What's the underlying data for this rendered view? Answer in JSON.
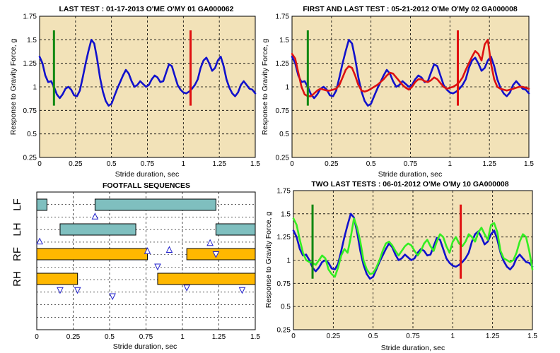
{
  "chart_data": [
    {
      "type": "line",
      "title": "LAST TEST : 01-17-2013 O'ME O'MY 01 GA000062",
      "xlabel": "Stride duration, sec",
      "ylabel": "Response to Gravity Force, g",
      "xlim": [
        0,
        1.5
      ],
      "ylim": [
        0.25,
        1.75
      ],
      "xticks": [
        "0",
        "0.25",
        "0.5",
        "0.75",
        "1",
        "1.25",
        "1.5"
      ],
      "yticks": [
        "0.25",
        "0.5",
        "0.75",
        "1",
        "1.25",
        "1.5",
        "1.75"
      ],
      "grid": true,
      "markers": [
        {
          "x": 0.1,
          "y0": 0.8,
          "y1": 1.6,
          "color": "#118811"
        },
        {
          "x": 1.05,
          "y0": 0.8,
          "y1": 1.6,
          "color": "#e01010"
        }
      ],
      "series": [
        {
          "color": "#1111cc",
          "x": [
            0,
            0.02,
            0.04,
            0.06,
            0.08,
            0.1,
            0.12,
            0.14,
            0.16,
            0.18,
            0.2,
            0.22,
            0.24,
            0.26,
            0.28,
            0.3,
            0.32,
            0.34,
            0.36,
            0.38,
            0.4,
            0.42,
            0.44,
            0.46,
            0.48,
            0.5,
            0.52,
            0.54,
            0.56,
            0.58,
            0.6,
            0.62,
            0.64,
            0.66,
            0.68,
            0.7,
            0.72,
            0.74,
            0.76,
            0.78,
            0.8,
            0.82,
            0.84,
            0.86,
            0.88,
            0.9,
            0.92,
            0.94,
            0.96,
            0.98,
            1,
            1.02,
            1.04,
            1.06,
            1.08,
            1.1,
            1.12,
            1.14,
            1.16,
            1.18,
            1.2,
            1.22,
            1.24,
            1.26,
            1.28,
            1.3,
            1.32,
            1.34,
            1.36,
            1.38,
            1.4,
            1.42,
            1.44,
            1.46,
            1.48,
            1.5
          ],
          "y": [
            1.32,
            1.25,
            1.12,
            1.05,
            1.06,
            1.0,
            0.92,
            0.88,
            0.92,
            0.98,
            1.0,
            0.97,
            0.91,
            0.9,
            0.96,
            1.1,
            1.25,
            1.38,
            1.5,
            1.46,
            1.3,
            1.1,
            0.95,
            0.85,
            0.8,
            0.82,
            0.9,
            0.98,
            1.05,
            1.12,
            1.18,
            1.14,
            1.06,
            1.0,
            1.02,
            1.06,
            1.03,
            1.0,
            1.02,
            1.08,
            1.12,
            1.1,
            1.05,
            1.06,
            1.15,
            1.24,
            1.22,
            1.12,
            1.02,
            0.97,
            0.94,
            0.93,
            0.95,
            0.98,
            1.02,
            1.08,
            1.2,
            1.28,
            1.31,
            1.25,
            1.17,
            1.2,
            1.28,
            1.32,
            1.22,
            1.08,
            0.99,
            0.93,
            0.9,
            0.94,
            1.02,
            1.06,
            1.02,
            0.98,
            0.97,
            0.93
          ]
        }
      ]
    },
    {
      "type": "line",
      "title": "FIRST AND LAST TEST : 05-21-2012 O'Me O'My 02 GA000008",
      "xlabel": "Stride duration, sec",
      "ylabel": "Response to Gravity Force, g",
      "xlim": [
        0,
        1.5
      ],
      "ylim": [
        0.25,
        1.75
      ],
      "xticks": [
        "0",
        "0.25",
        "0.5",
        "0.75",
        "1",
        "1.25",
        "1.5"
      ],
      "yticks": [
        "0.25",
        "0.5",
        "0.75",
        "1",
        "1.25",
        "1.5",
        "1.75"
      ],
      "grid": true,
      "markers": [
        {
          "x": 0.1,
          "y0": 0.8,
          "y1": 1.6,
          "color": "#118811"
        },
        {
          "x": 1.05,
          "y0": 0.8,
          "y1": 1.6,
          "color": "#e01010"
        }
      ],
      "series": [
        {
          "color": "#1111cc",
          "x": [
            0,
            0.02,
            0.04,
            0.06,
            0.08,
            0.1,
            0.12,
            0.14,
            0.16,
            0.18,
            0.2,
            0.22,
            0.24,
            0.26,
            0.28,
            0.3,
            0.32,
            0.34,
            0.36,
            0.38,
            0.4,
            0.42,
            0.44,
            0.46,
            0.48,
            0.5,
            0.52,
            0.54,
            0.56,
            0.58,
            0.6,
            0.62,
            0.64,
            0.66,
            0.68,
            0.7,
            0.72,
            0.74,
            0.76,
            0.78,
            0.8,
            0.82,
            0.84,
            0.86,
            0.88,
            0.9,
            0.92,
            0.94,
            0.96,
            0.98,
            1,
            1.02,
            1.04,
            1.06,
            1.08,
            1.1,
            1.12,
            1.14,
            1.16,
            1.18,
            1.2,
            1.22,
            1.24,
            1.26,
            1.28,
            1.3,
            1.32,
            1.34,
            1.36,
            1.38,
            1.4,
            1.42,
            1.44,
            1.46,
            1.48,
            1.5
          ],
          "y": [
            1.32,
            1.25,
            1.12,
            1.05,
            1.06,
            1.0,
            0.92,
            0.88,
            0.92,
            0.98,
            1.0,
            0.97,
            0.91,
            0.9,
            0.96,
            1.1,
            1.25,
            1.38,
            1.5,
            1.46,
            1.3,
            1.1,
            0.95,
            0.85,
            0.8,
            0.82,
            0.9,
            0.98,
            1.05,
            1.12,
            1.18,
            1.14,
            1.06,
            1.0,
            1.02,
            1.06,
            1.03,
            1.0,
            1.02,
            1.08,
            1.12,
            1.1,
            1.05,
            1.06,
            1.15,
            1.24,
            1.22,
            1.12,
            1.02,
            0.97,
            0.94,
            0.93,
            0.95,
            0.98,
            1.02,
            1.08,
            1.2,
            1.28,
            1.31,
            1.25,
            1.17,
            1.2,
            1.28,
            1.32,
            1.22,
            1.08,
            0.99,
            0.93,
            0.9,
            0.94,
            1.02,
            1.06,
            1.02,
            0.98,
            0.97,
            0.93
          ]
        },
        {
          "color": "#dd1111",
          "x": [
            0,
            0.02,
            0.04,
            0.06,
            0.08,
            0.1,
            0.12,
            0.14,
            0.16,
            0.18,
            0.2,
            0.22,
            0.24,
            0.26,
            0.28,
            0.3,
            0.32,
            0.34,
            0.36,
            0.38,
            0.4,
            0.42,
            0.44,
            0.46,
            0.48,
            0.5,
            0.52,
            0.54,
            0.56,
            0.58,
            0.6,
            0.62,
            0.64,
            0.66,
            0.68,
            0.7,
            0.72,
            0.74,
            0.76,
            0.78,
            0.8,
            0.82,
            0.84,
            0.86,
            0.88,
            0.9,
            0.92,
            0.94,
            0.96,
            0.98,
            1,
            1.02,
            1.04,
            1.06,
            1.08,
            1.1,
            1.12,
            1.14,
            1.16,
            1.18,
            1.2,
            1.22,
            1.24,
            1.26,
            1.28,
            1.3,
            1.32,
            1.34,
            1.36,
            1.38,
            1.4,
            1.42,
            1.44,
            1.46,
            1.48,
            1.5
          ],
          "y": [
            1.35,
            1.3,
            1.15,
            1.0,
            0.92,
            0.9,
            0.9,
            0.93,
            0.96,
            0.98,
            0.97,
            0.96,
            0.96,
            0.97,
            0.98,
            1.02,
            1.1,
            1.18,
            1.22,
            1.2,
            1.12,
            1.02,
            0.96,
            0.95,
            0.96,
            0.98,
            1.0,
            1.02,
            1.05,
            1.08,
            1.12,
            1.15,
            1.14,
            1.1,
            1.06,
            1.02,
            0.99,
            0.97,
            1.0,
            1.05,
            1.08,
            1.08,
            1.06,
            1.05,
            1.07,
            1.1,
            1.08,
            1.04,
            1.0,
            0.98,
            0.99,
            1.0,
            1.02,
            1.05,
            1.1,
            1.18,
            1.25,
            1.32,
            1.38,
            1.35,
            1.28,
            1.45,
            1.5,
            1.25,
            1.08,
            1.0,
            0.98,
            0.97,
            0.96,
            0.97,
            0.98,
            0.99,
            1.0,
            1.0,
            0.99,
            0.98
          ]
        }
      ]
    },
    {
      "type": "footfall",
      "title": "FOOTFALL SEQUENCES",
      "xlabel": "Stride duration, sec",
      "xlim": [
        0,
        1.5
      ],
      "xticks": [
        "0",
        "0.25",
        "0.5",
        "0.75",
        "1",
        "1.25",
        "1.5"
      ],
      "grid": true,
      "lanes": [
        "LF",
        "LH",
        "RF",
        "RH"
      ],
      "fore_color": "#7fbfbf",
      "hind_color": "#ffb800",
      "bars": [
        {
          "lane": 0,
          "x0": 0.0,
          "x1": 0.07,
          "kind": "fore"
        },
        {
          "lane": 0,
          "x0": 0.4,
          "x1": 1.23,
          "kind": "fore"
        },
        {
          "lane": 1,
          "x0": 0.16,
          "x1": 0.68,
          "kind": "fore"
        },
        {
          "lane": 1,
          "x0": 1.23,
          "x1": 1.5,
          "kind": "fore"
        },
        {
          "lane": 2,
          "x0": 0.0,
          "x1": 0.76,
          "kind": "hind"
        },
        {
          "lane": 2,
          "x0": 1.03,
          "x1": 1.5,
          "kind": "hind"
        },
        {
          "lane": 3,
          "x0": 0.0,
          "x1": 0.28,
          "kind": "hind"
        },
        {
          "lane": 3,
          "x0": 0.83,
          "x1": 1.5,
          "kind": "hind"
        }
      ],
      "markers": [
        {
          "x": 0.4,
          "pos": 0.55,
          "dir": "up"
        },
        {
          "x": 0.02,
          "pos": 1.56,
          "dir": "up"
        },
        {
          "x": 1.19,
          "pos": 1.62,
          "dir": "up"
        },
        {
          "x": 0.76,
          "pos": 1.95,
          "dir": "up"
        },
        {
          "x": 0.91,
          "pos": 1.9,
          "dir": "up"
        },
        {
          "x": 1.23,
          "pos": 2.1,
          "dir": "down"
        },
        {
          "x": 0.83,
          "pos": 2.6,
          "dir": "down"
        },
        {
          "x": 0.16,
          "pos": 3.55,
          "dir": "down"
        },
        {
          "x": 0.28,
          "pos": 3.55,
          "dir": "down"
        },
        {
          "x": 1.03,
          "pos": 3.45,
          "dir": "down"
        },
        {
          "x": 1.41,
          "pos": 3.55,
          "dir": "down"
        },
        {
          "x": 0.52,
          "pos": 3.8,
          "dir": "down"
        }
      ]
    },
    {
      "type": "line",
      "title": "TWO LAST TESTS : 06-01-2012 O'Me O'My 10 GA000008",
      "xlabel": "Stride duration, sec",
      "ylabel": "Response to Gravity Force, g",
      "xlim": [
        0,
        1.5
      ],
      "ylim": [
        0.25,
        1.75
      ],
      "xticks": [
        "0",
        "0.25",
        "0.5",
        "0.75",
        "1",
        "1.25",
        "1.5"
      ],
      "yticks": [
        "0.25",
        "0.5",
        "0.75",
        "1",
        "1.25",
        "1.5",
        "1.75"
      ],
      "grid": true,
      "markers": [
        {
          "x": 0.12,
          "y0": 0.8,
          "y1": 1.6,
          "color": "#118811"
        },
        {
          "x": 1.05,
          "y0": 0.8,
          "y1": 1.6,
          "color": "#e01010"
        }
      ],
      "series": [
        {
          "color": "#1111cc",
          "x": [
            0,
            0.02,
            0.04,
            0.06,
            0.08,
            0.1,
            0.12,
            0.14,
            0.16,
            0.18,
            0.2,
            0.22,
            0.24,
            0.26,
            0.28,
            0.3,
            0.32,
            0.34,
            0.36,
            0.38,
            0.4,
            0.42,
            0.44,
            0.46,
            0.48,
            0.5,
            0.52,
            0.54,
            0.56,
            0.58,
            0.6,
            0.62,
            0.64,
            0.66,
            0.68,
            0.7,
            0.72,
            0.74,
            0.76,
            0.78,
            0.8,
            0.82,
            0.84,
            0.86,
            0.88,
            0.9,
            0.92,
            0.94,
            0.96,
            0.98,
            1,
            1.02,
            1.04,
            1.06,
            1.08,
            1.1,
            1.12,
            1.14,
            1.16,
            1.18,
            1.2,
            1.22,
            1.24,
            1.26,
            1.28,
            1.3,
            1.32,
            1.34,
            1.36,
            1.38,
            1.4,
            1.42,
            1.44,
            1.46,
            1.48,
            1.5
          ],
          "y": [
            1.32,
            1.25,
            1.12,
            1.05,
            1.06,
            1.0,
            0.92,
            0.88,
            0.92,
            0.98,
            1.0,
            0.97,
            0.91,
            0.9,
            0.96,
            1.1,
            1.25,
            1.38,
            1.5,
            1.46,
            1.3,
            1.1,
            0.95,
            0.85,
            0.8,
            0.82,
            0.9,
            0.98,
            1.05,
            1.12,
            1.18,
            1.14,
            1.06,
            1.0,
            1.02,
            1.06,
            1.03,
            1.0,
            1.02,
            1.08,
            1.12,
            1.1,
            1.05,
            1.06,
            1.15,
            1.24,
            1.22,
            1.12,
            1.02,
            0.97,
            0.94,
            0.93,
            0.95,
            0.98,
            1.02,
            1.08,
            1.2,
            1.28,
            1.31,
            1.25,
            1.17,
            1.2,
            1.28,
            1.32,
            1.22,
            1.08,
            0.99,
            0.93,
            0.9,
            0.94,
            1.02,
            1.06,
            1.02,
            0.98,
            0.97,
            0.93
          ]
        },
        {
          "color": "#33ee22",
          "x": [
            0,
            0.02,
            0.04,
            0.06,
            0.08,
            0.1,
            0.12,
            0.14,
            0.16,
            0.18,
            0.2,
            0.22,
            0.24,
            0.26,
            0.28,
            0.3,
            0.32,
            0.34,
            0.36,
            0.38,
            0.4,
            0.42,
            0.44,
            0.46,
            0.48,
            0.5,
            0.52,
            0.54,
            0.56,
            0.58,
            0.6,
            0.62,
            0.64,
            0.66,
            0.68,
            0.7,
            0.72,
            0.74,
            0.76,
            0.78,
            0.8,
            0.82,
            0.84,
            0.86,
            0.88,
            0.9,
            0.92,
            0.94,
            0.96,
            0.98,
            1,
            1.02,
            1.04,
            1.06,
            1.08,
            1.1,
            1.12,
            1.14,
            1.16,
            1.18,
            1.2,
            1.22,
            1.24,
            1.26,
            1.28,
            1.3,
            1.32,
            1.34,
            1.36,
            1.38,
            1.4,
            1.42,
            1.44,
            1.46,
            1.48,
            1.5
          ],
          "y": [
            1.45,
            1.38,
            1.22,
            1.08,
            1.0,
            0.98,
            0.97,
            0.95,
            1.0,
            1.05,
            1.02,
            0.9,
            0.85,
            0.82,
            0.92,
            1.05,
            1.12,
            1.08,
            1.25,
            1.45,
            1.35,
            1.2,
            1.0,
            0.9,
            0.85,
            0.86,
            0.92,
            1.0,
            1.1,
            1.18,
            1.2,
            1.16,
            1.1,
            1.05,
            1.1,
            1.15,
            1.18,
            1.16,
            1.1,
            1.05,
            1.1,
            1.18,
            1.22,
            1.15,
            1.1,
            1.2,
            1.28,
            1.25,
            1.15,
            1.08,
            1.2,
            1.25,
            1.18,
            1.15,
            1.2,
            1.28,
            1.25,
            1.2,
            1.3,
            1.35,
            1.28,
            1.22,
            1.38,
            1.4,
            1.3,
            1.1,
            1.02,
            1.0,
            0.98,
            1.0,
            1.08,
            1.2,
            1.28,
            1.25,
            1.1,
            0.9
          ]
        }
      ]
    }
  ]
}
